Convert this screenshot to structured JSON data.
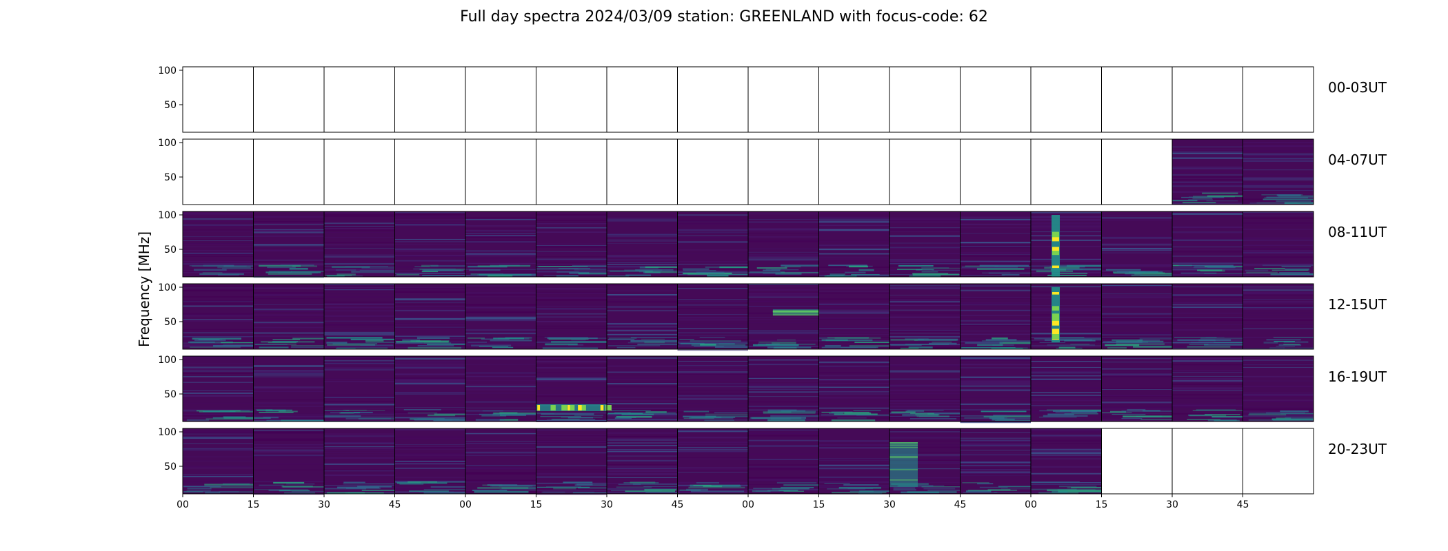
{
  "chart_data": {
    "type": "heatmap",
    "title": "Full day spectra 2024/03/09 station: GREENLAND with focus-code: 62",
    "ylabel": "Frequency [MHz]",
    "xlabel": "",
    "y_ticks": [
      100,
      50
    ],
    "ylim": [
      10,
      105
    ],
    "x_tick_labels": [
      "00",
      "15",
      "30",
      "45",
      "00",
      "15",
      "30",
      "45",
      "00",
      "15",
      "30",
      "45",
      "00",
      "15",
      "30",
      "45"
    ],
    "panels_per_row": 16,
    "panel_minutes": 15,
    "colormap": "viridis",
    "colors": {
      "low": "#440154",
      "mid": "#21918c",
      "high": "#fde725"
    },
    "rows": [
      {
        "label": "00-03UT",
        "data_panels": []
      },
      {
        "label": "04-07UT",
        "data_panels": [
          14,
          15
        ]
      },
      {
        "label": "08-11UT",
        "data_panels": [
          0,
          1,
          2,
          3,
          4,
          5,
          6,
          7,
          8,
          9,
          10,
          11,
          12,
          13,
          14,
          15
        ]
      },
      {
        "label": "12-15UT",
        "data_panels": [
          0,
          1,
          2,
          3,
          4,
          5,
          6,
          7,
          8,
          9,
          10,
          11,
          12,
          13,
          14,
          15
        ]
      },
      {
        "label": "16-19UT",
        "data_panels": [
          0,
          1,
          2,
          3,
          4,
          5,
          6,
          7,
          8,
          9,
          10,
          11,
          12,
          13,
          14,
          15
        ]
      },
      {
        "label": "20-23UT",
        "data_panels": [
          0,
          1,
          2,
          3,
          4,
          5,
          6,
          7,
          8,
          9,
          10,
          11,
          12
        ]
      }
    ],
    "bursts": [
      {
        "row": "08-11UT",
        "panel": 12,
        "freq_range_mhz": [
          10,
          100
        ],
        "intensity": "high"
      },
      {
        "row": "12-15UT",
        "panel": 12,
        "freq_range_mhz": [
          20,
          100
        ],
        "intensity": "high"
      },
      {
        "row": "12-15UT",
        "panel": 8,
        "freq_range_mhz": [
          60,
          68
        ],
        "intensity": "mid"
      },
      {
        "row": "16-19UT",
        "panel": 5,
        "freq_range_mhz": [
          25,
          35
        ],
        "intensity": "high"
      },
      {
        "row": "20-23UT",
        "panel": 10,
        "freq_range_mhz": [
          20,
          85
        ],
        "intensity": "mid"
      }
    ]
  }
}
